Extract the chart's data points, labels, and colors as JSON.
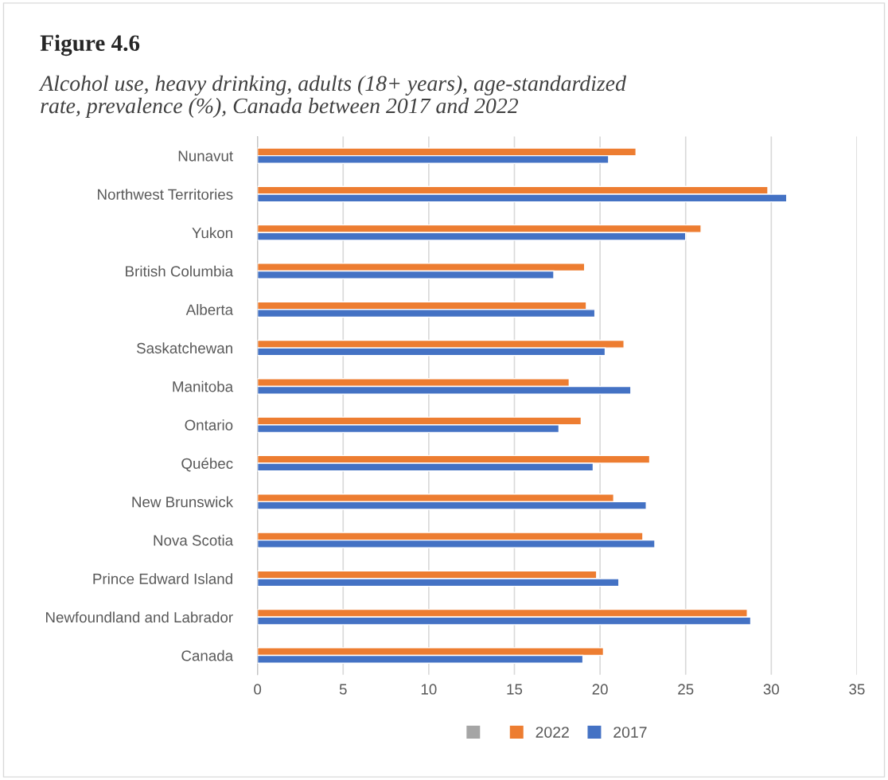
{
  "chart_data": {
    "type": "bar",
    "orientation": "horizontal",
    "title": "Figure 4.6",
    "subtitle": "Alcohol use, heavy drinking, adults (18+ years), age-standardized\nrate, prevalence (%), Canada between 2017 and 2022",
    "categories": [
      "Nunavut",
      "Northwest Territories",
      "Yukon",
      "British Columbia",
      "Alberta",
      "Saskatchewan",
      "Manitoba",
      "Ontario",
      "Québec",
      "New Brunswick",
      "Nova Scotia",
      "Prince Edward Island",
      "Newfoundland and Labrador",
      "Canada"
    ],
    "series": [
      {
        "color": "#a5a5a5",
        "values": [
          null,
          null,
          null,
          null,
          null,
          null,
          null,
          null,
          null,
          null,
          null,
          null,
          null,
          null
        ]
      },
      {
        "name": "2022",
        "color": "#ed7d31",
        "values": [
          22.1,
          29.8,
          25.9,
          19.1,
          19.2,
          21.4,
          18.2,
          18.9,
          22.9,
          20.8,
          22.5,
          19.8,
          28.6,
          20.2
        ]
      },
      {
        "name": "2017",
        "color": "#4472c4",
        "values": [
          20.5,
          30.9,
          25.0,
          17.3,
          19.7,
          20.3,
          21.8,
          17.6,
          19.6,
          22.7,
          23.2,
          21.1,
          28.8,
          19.0
        ]
      }
    ],
    "xlim": [
      0,
      35
    ],
    "xticks": [
      0,
      5,
      10,
      15,
      20,
      25,
      30,
      35
    ],
    "grid": "x",
    "legend": "bottom"
  }
}
